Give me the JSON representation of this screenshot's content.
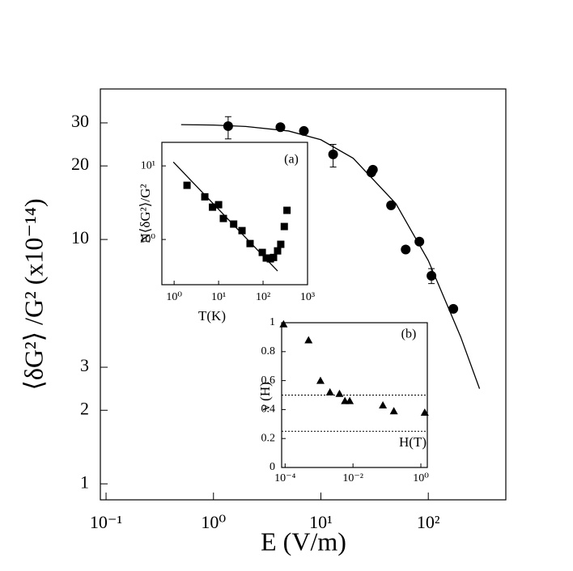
{
  "chart_data": [
    {
      "type": "scatter",
      "x_label": "E (V/m)",
      "y_label": "⟨δG²⟩ /G² (x10⁻¹⁴)",
      "xlog": true,
      "ylog": true,
      "xlim": [
        0.0885,
        527
      ],
      "ylim": [
        0.86,
        41.3
      ],
      "xticks": [
        {
          "value": 0.1,
          "label": "10⁻¹"
        },
        {
          "value": 1,
          "label": "10⁰"
        },
        {
          "value": 10,
          "label": "10¹"
        },
        {
          "value": 100,
          "label": "10²"
        }
      ],
      "yticks": [
        1,
        2,
        3,
        10,
        20,
        30
      ],
      "series": [
        {
          "marker": "circle",
          "color": "#000000",
          "x": [
            1.37,
            4.2,
            6.95,
            13,
            29.5,
            30.5,
            45,
            61.6,
            82.6,
            107,
            171
          ],
          "values": [
            29.1,
            28.8,
            27.8,
            22.3,
            18.8,
            19.3,
            13.8,
            9.1,
            9.8,
            7.1,
            5.2
          ],
          "err_low": [
            25.8,
            null,
            null,
            19.8,
            null,
            null,
            null,
            null,
            null,
            6.6,
            null
          ],
          "err_high": [
            31.8,
            null,
            null,
            24.5,
            null,
            null,
            null,
            null,
            null,
            7.6,
            null
          ]
        },
        {
          "marker": "line",
          "color": "#000000",
          "x": [
            0.5,
            1,
            2,
            5,
            10,
            20,
            50,
            100,
            200,
            300
          ],
          "values": [
            29.5,
            29.4,
            29.0,
            27.8,
            25.6,
            21.5,
            14.0,
            8.2,
            4.0,
            2.45
          ]
        }
      ]
    },
    {
      "type": "scatter",
      "annotation": "(a)",
      "x_label": "T(K)",
      "y_label": "N⟨δG²⟩/G²",
      "xlog": true,
      "ylog": true,
      "xlim": [
        0.53,
        1000
      ],
      "ylim": [
        0.243,
        20.9
      ],
      "xticks": [
        {
          "value": 1,
          "label": "10⁰"
        },
        {
          "value": 10,
          "label": "10¹"
        },
        {
          "value": 100,
          "label": "10²"
        },
        {
          "value": 1000,
          "label": "10³"
        }
      ],
      "yticks": [
        {
          "value": 1,
          "label": "10⁰"
        },
        {
          "value": 10,
          "label": "10¹"
        }
      ],
      "series": [
        {
          "marker": "square",
          "color": "#000000",
          "x": [
            1.95,
            4.9,
            7.3,
            10,
            12.8,
            21.8,
            33.6,
            51,
            96,
            118,
            146,
            172,
            212,
            250,
            300,
            345
          ],
          "values": [
            5.45,
            3.8,
            2.75,
            2.97,
            1.93,
            1.62,
            1.32,
            0.88,
            0.667,
            0.56,
            0.545,
            0.57,
            0.7,
            0.86,
            1.5,
            2.49
          ]
        },
        {
          "marker": "line",
          "color": "#000000",
          "x": [
            0.96,
            212
          ],
          "values": [
            11.3,
            0.373
          ]
        }
      ]
    },
    {
      "type": "scatter",
      "annotation": "(b)",
      "x_label": "H(T)",
      "y_label": "ν (H)",
      "xlog": true,
      "ylog": false,
      "xlim": [
        7.9e-05,
        1.55
      ],
      "ylim": [
        0,
        1
      ],
      "xticks": [
        {
          "value": 0.0001,
          "label": "10⁻⁴"
        },
        {
          "value": 0.01,
          "label": "10⁻²"
        },
        {
          "value": 1,
          "label": "10⁰"
        }
      ],
      "yticks": [
        0,
        0.2,
        0.4,
        0.6,
        0.8,
        1
      ],
      "hlines": [
        0.5,
        0.25
      ],
      "series": [
        {
          "marker": "triangle",
          "color": "#000000",
          "x": [
            9e-05,
            0.00049,
            0.0011,
            0.0021,
            0.004,
            0.0058,
            0.008,
            0.076,
            0.16,
            1.3
          ],
          "values": [
            0.99,
            0.88,
            0.6,
            0.52,
            0.51,
            0.46,
            0.46,
            0.43,
            0.39,
            0.38
          ]
        }
      ]
    }
  ]
}
